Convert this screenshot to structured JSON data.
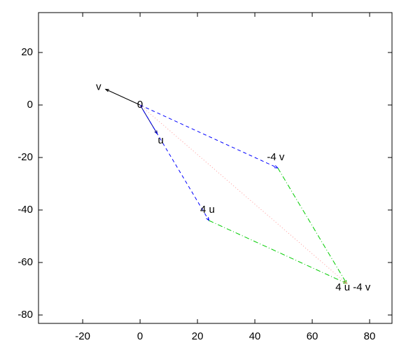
{
  "chart_data": {
    "type": "vector",
    "xlim": [
      -35.4,
      87.8
    ],
    "ylim": [
      -83.2,
      35.2
    ],
    "xticks": [
      -20,
      0,
      20,
      40,
      60,
      80
    ],
    "yticks": [
      -80,
      -60,
      -40,
      -20,
      0,
      20
    ],
    "points": [
      {
        "label": "0",
        "x": 0,
        "y": 0
      },
      {
        "label": "v",
        "x": -12,
        "y": 6
      },
      {
        "label": "u",
        "x": 6,
        "y": -11
      },
      {
        "label": "-4 v",
        "x": 48,
        "y": -24
      },
      {
        "label": "4 u",
        "x": 24,
        "y": -44
      },
      {
        "label": "4 u -4 v",
        "x": 72,
        "y": -68
      }
    ],
    "segments": [
      {
        "x": [
          0,
          -12
        ],
        "y": [
          0,
          6
        ],
        "color": "#000000",
        "dash": "solid"
      },
      {
        "x": [
          0,
          6
        ],
        "y": [
          0,
          -11
        ],
        "color": "#000080",
        "dash": "solid"
      },
      {
        "x": [
          0,
          48
        ],
        "y": [
          0,
          -24
        ],
        "color": "#0000ff",
        "dash": "dashed"
      },
      {
        "x": [
          0,
          24
        ],
        "y": [
          0,
          -44
        ],
        "color": "#0000ff",
        "dash": "dashed"
      },
      {
        "x": [
          48,
          72
        ],
        "y": [
          -24,
          -68
        ],
        "color": "#00cc00",
        "dash": "dashdot"
      },
      {
        "x": [
          24,
          72
        ],
        "y": [
          -44,
          -68
        ],
        "color": "#00cc00",
        "dash": "dashdot"
      },
      {
        "x": [
          0,
          72
        ],
        "y": [
          0,
          -68
        ],
        "color": "#ff9999",
        "dash": "dotted"
      }
    ]
  }
}
